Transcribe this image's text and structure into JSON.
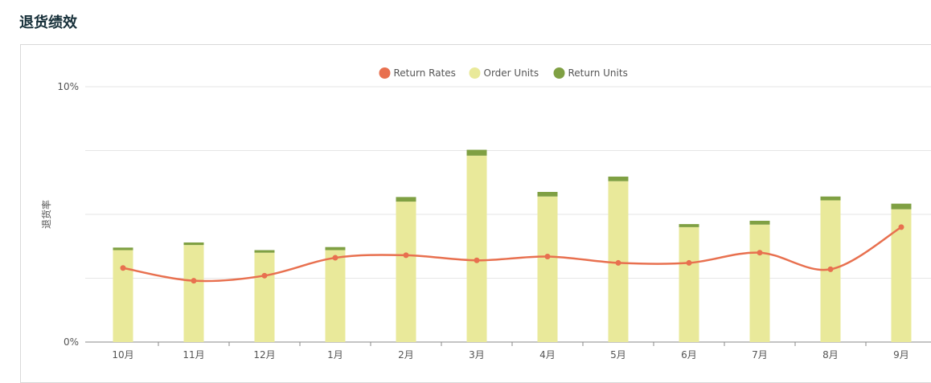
{
  "page": {
    "title": "退货绩效"
  },
  "chart_data": {
    "type": "bar",
    "title": "",
    "ylabel": "退货率",
    "ylim": [
      0,
      10
    ],
    "y_ticks": [
      "10%",
      "0%"
    ],
    "grid": true,
    "legend_position": "top",
    "categories": [
      "10月",
      "11月",
      "12月",
      "1月",
      "2月",
      "3月",
      "4月",
      "5月",
      "6月",
      "7月",
      "8月",
      "9月"
    ],
    "series": [
      {
        "name": "Return Rates",
        "kind": "line",
        "color": "#e8704f",
        "values": [
          2.9,
          2.4,
          2.6,
          3.3,
          3.4,
          3.2,
          3.35,
          3.1,
          3.1,
          3.5,
          2.85,
          4.5
        ]
      },
      {
        "name": "Order Units",
        "kind": "bar",
        "color": "#e9e99a",
        "values": [
          3.6,
          3.8,
          3.5,
          3.6,
          5.5,
          7.3,
          5.7,
          6.3,
          4.5,
          4.6,
          5.55,
          5.2
        ]
      },
      {
        "name": "Return Units",
        "kind": "bar",
        "color": "#7fa043",
        "values": [
          0.1,
          0.1,
          0.1,
          0.12,
          0.18,
          0.23,
          0.18,
          0.18,
          0.12,
          0.15,
          0.15,
          0.22
        ]
      }
    ]
  }
}
